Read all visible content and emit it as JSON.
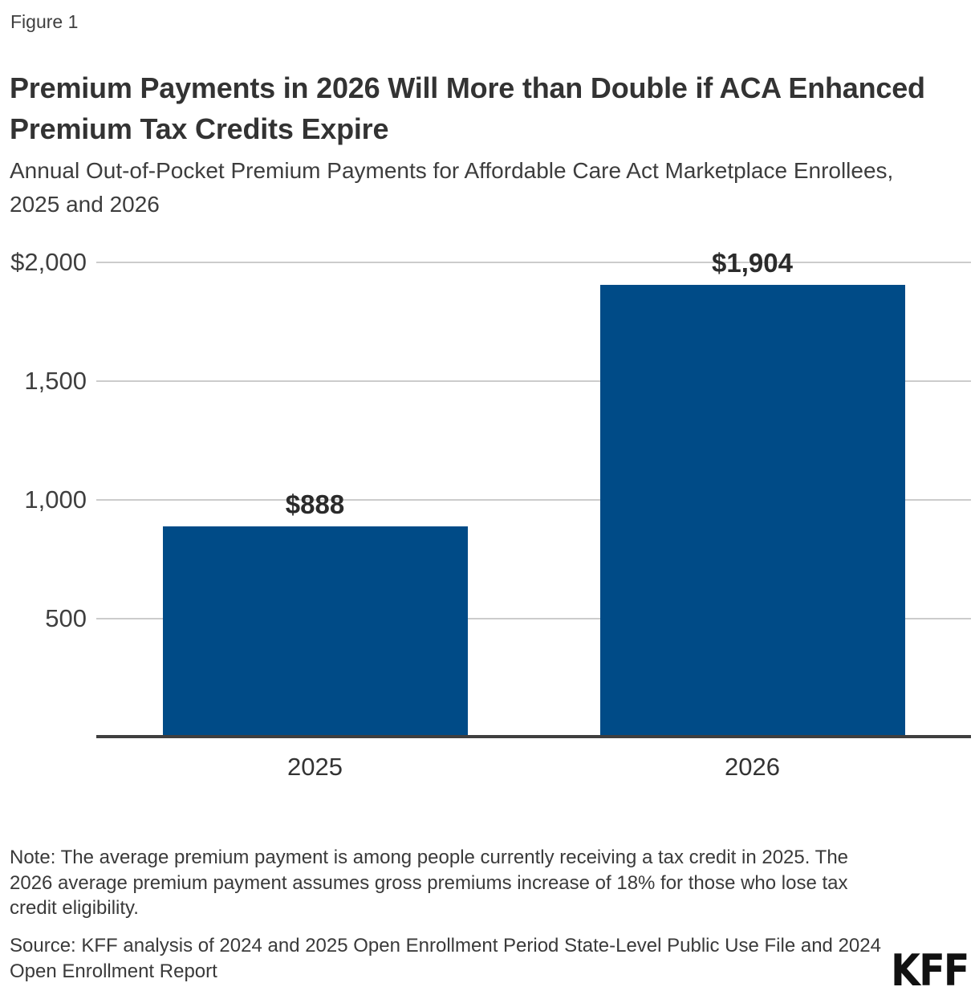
{
  "figure_label": "Figure 1",
  "title": "Premium Payments in 2026 Will More than Double if ACA Enhanced Premium Tax Credits Expire",
  "subtitle": "Annual Out-of-Pocket Premium Payments for Affordable Care Act Marketplace Enrollees, 2025 and 2026",
  "chart_data": {
    "type": "bar",
    "categories": [
      "2025",
      "2026"
    ],
    "values": [
      888,
      1904
    ],
    "value_labels": [
      "$888",
      "$1,904"
    ],
    "title": "",
    "xlabel": "",
    "ylabel": "",
    "ylim": [
      0,
      2000
    ],
    "yticks": [
      500,
      1000,
      1500,
      2000
    ],
    "ytick_labels": [
      "500",
      "1,000",
      "1,500",
      "$2,000"
    ],
    "grid": true,
    "legend": "none",
    "bar_color": "#004B87",
    "gridline_color": "#cccccc",
    "axis_line_color": "#3f3f3f"
  },
  "note": "Note: The average premium payment is among people currently receiving a tax credit in 2025. The 2026 average premium payment assumes gross premiums increase of 18% for those who lose tax credit eligibility.",
  "source": "Source: KFF analysis of 2024 and 2025 Open Enrollment Period State-Level Public Use File and 2024 Open Enrollment Report",
  "logo_text": "KFF"
}
